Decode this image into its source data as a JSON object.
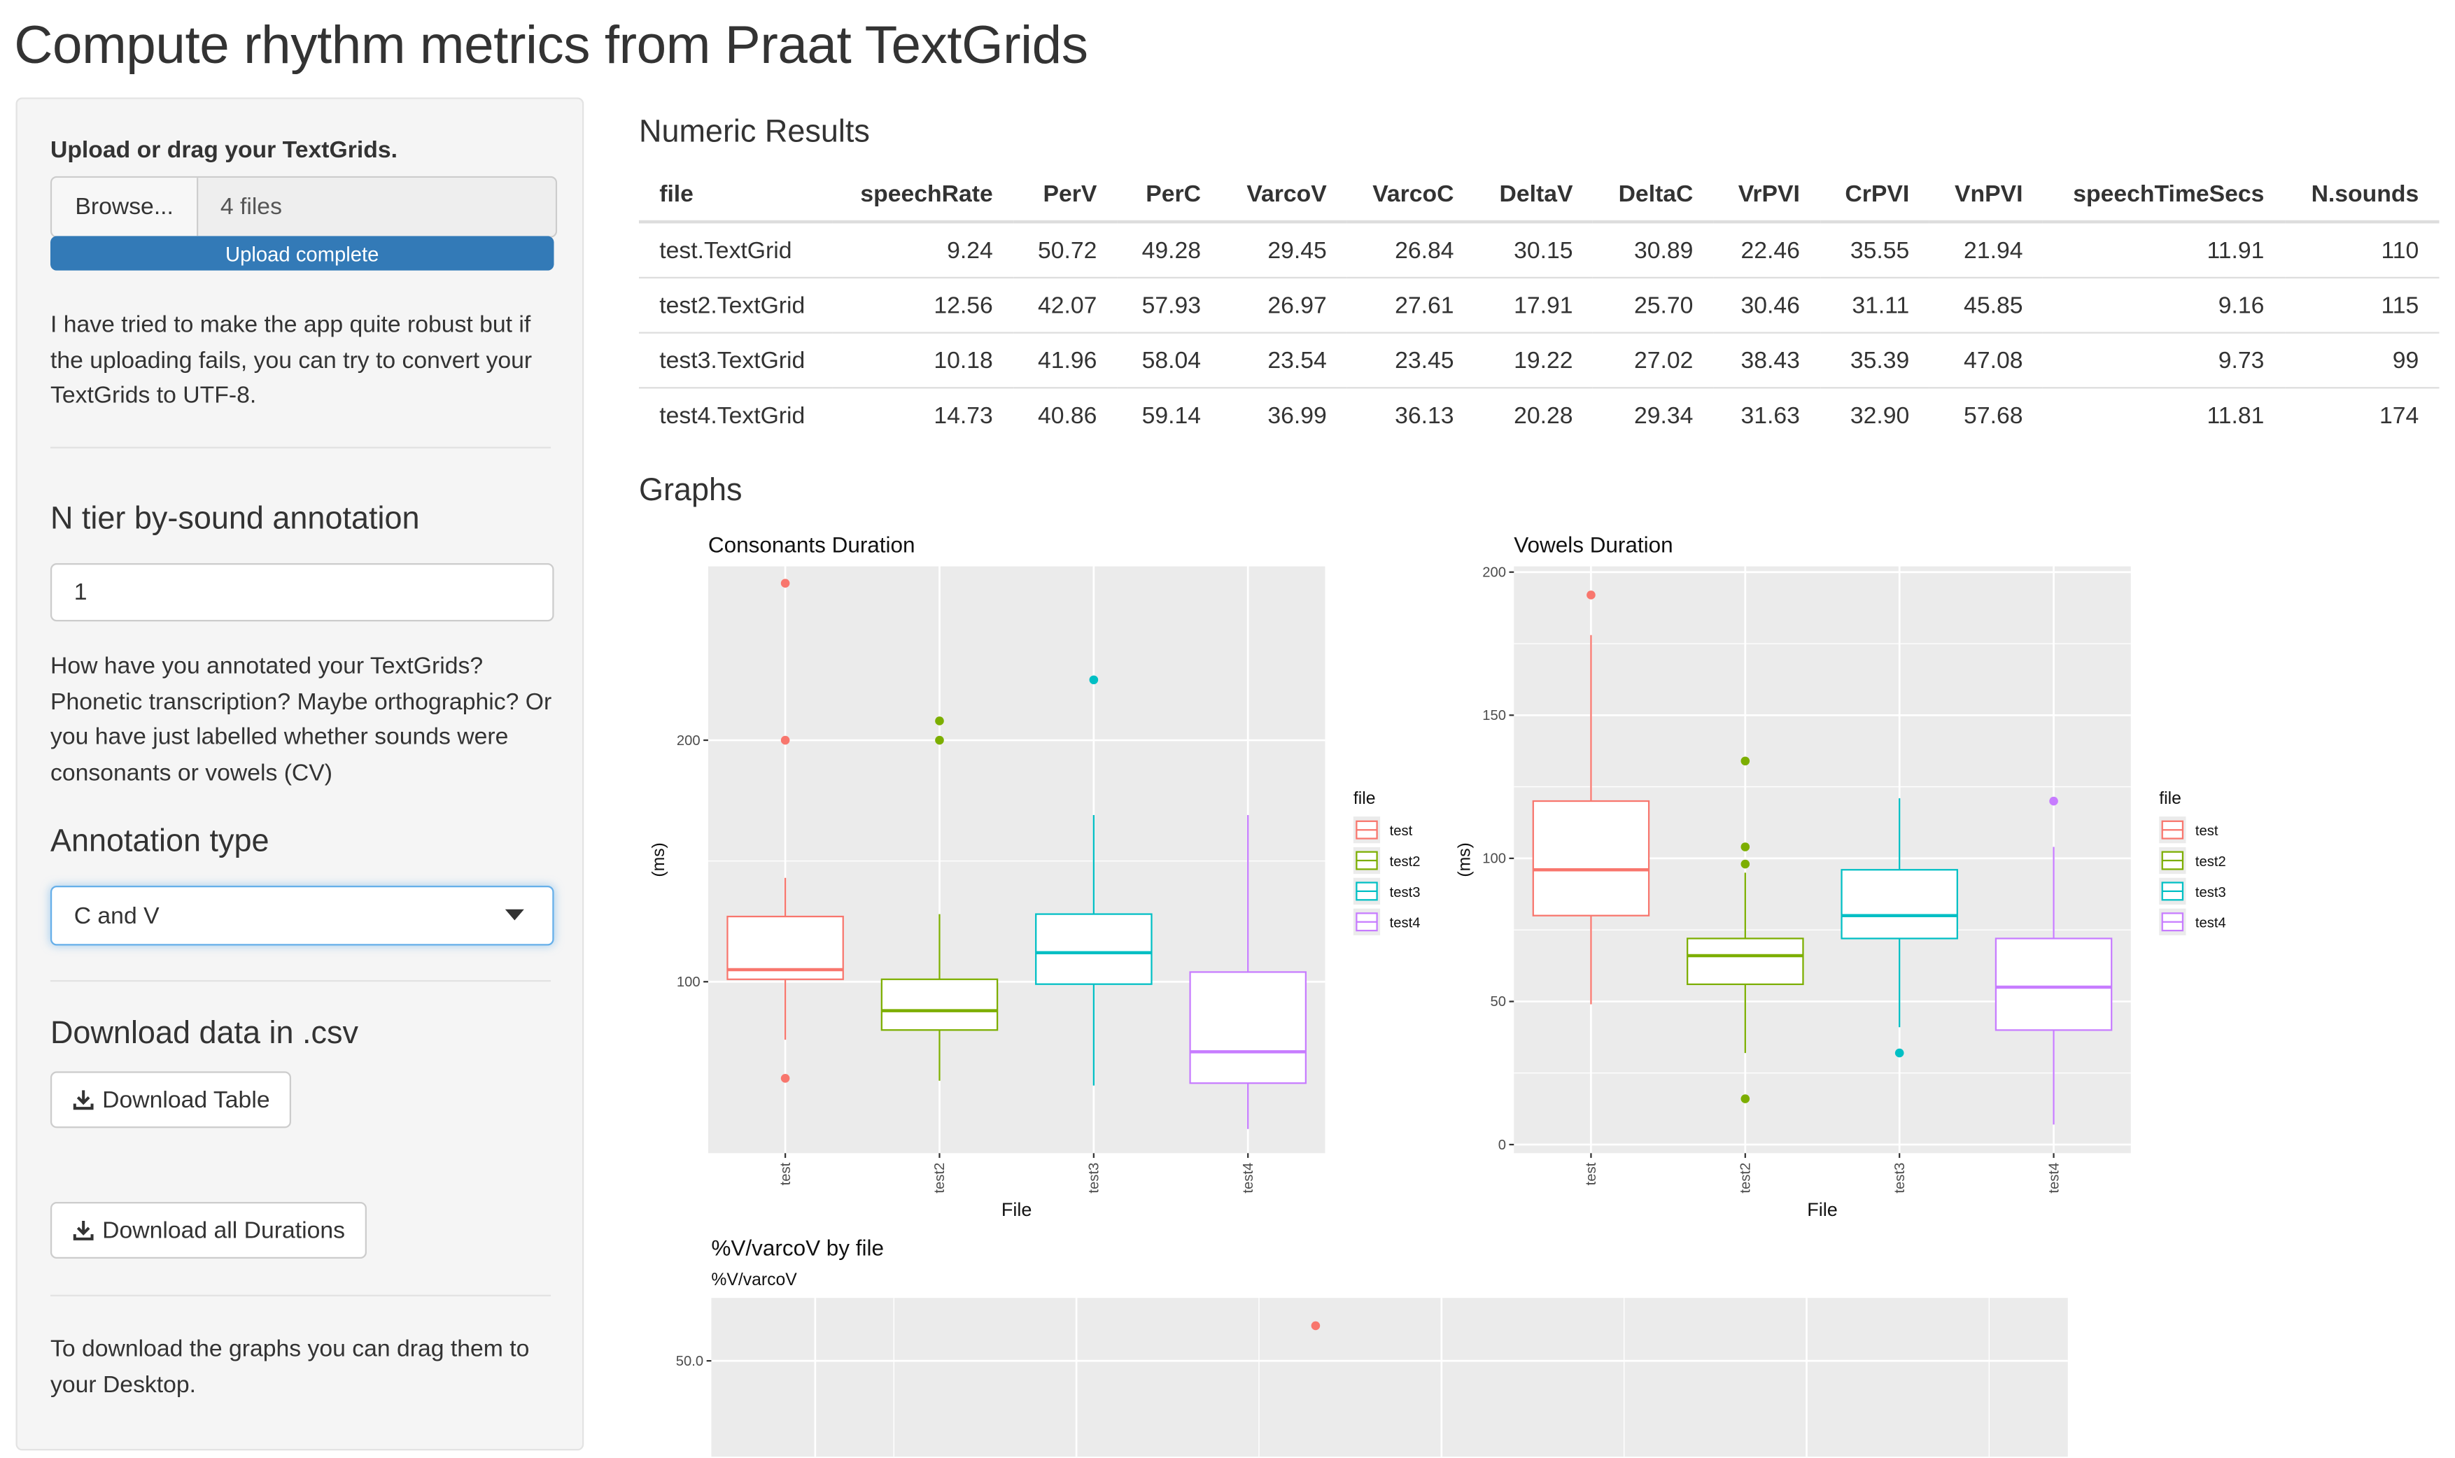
{
  "app": {
    "title": "Compute rhythm metrics from Praat TextGrids"
  },
  "sidebar": {
    "upload_label": "Upload or drag your TextGrids.",
    "browse_label": "Browse...",
    "file_count": "4 files",
    "progress_text": "Upload complete",
    "progress_value": 100,
    "upload_help": "I have tried to make the app quite robust but if the uploading fails, you can try to convert your TextGrids to UTF-8.",
    "ntier_heading": "N tier by-sound annotation",
    "ntier_value": "1",
    "annotation_help": "How have you annotated your TextGrids? Phonetic transcription? Maybe orthographic? Or you have just labelled whether sounds were consonants or vowels (CV)",
    "annotation_heading": "Annotation type",
    "annotation_value": "C and V",
    "download_heading": "Download data in .csv",
    "download_table_label": "Download Table",
    "download_durations_label": "Download all Durations",
    "drag_help": "To download the graphs you can drag them to your Desktop."
  },
  "main": {
    "results_heading": "Numeric Results",
    "graphs_heading": "Graphs",
    "table": {
      "columns": [
        "file",
        "speechRate",
        "PerV",
        "PerC",
        "VarcoV",
        "VarcoC",
        "DeltaV",
        "DeltaC",
        "VrPVI",
        "CrPVI",
        "VnPVI",
        "speechTimeSecs",
        "N.sounds"
      ],
      "rows": [
        [
          "test.TextGrid",
          "9.24",
          "50.72",
          "49.28",
          "29.45",
          "26.84",
          "30.15",
          "30.89",
          "22.46",
          "35.55",
          "21.94",
          "11.91",
          "110"
        ],
        [
          "test2.TextGrid",
          "12.56",
          "42.07",
          "57.93",
          "26.97",
          "27.61",
          "17.91",
          "25.70",
          "30.46",
          "31.11",
          "45.85",
          "9.16",
          "115"
        ],
        [
          "test3.TextGrid",
          "10.18",
          "41.96",
          "58.04",
          "23.54",
          "23.45",
          "19.22",
          "27.02",
          "38.43",
          "35.39",
          "47.08",
          "9.73",
          "99"
        ],
        [
          "test4.TextGrid",
          "14.73",
          "40.86",
          "59.14",
          "36.99",
          "36.13",
          "20.28",
          "29.34",
          "31.63",
          "32.90",
          "57.68",
          "11.81",
          "174"
        ]
      ]
    }
  },
  "colors": {
    "test": "#F8766D",
    "test2": "#7CAE00",
    "test3": "#00BFC4",
    "test4": "#C77CFF",
    "panel": "#EBEBEB",
    "accent": "#337ab7"
  },
  "chart_data": [
    {
      "type": "box",
      "title": "Consonants Duration",
      "xlabel": "File",
      "ylabel": "(ms)",
      "legend_title": "file",
      "legend_position": "right",
      "categories": [
        "test",
        "test2",
        "test3",
        "test4"
      ],
      "y_ticks": [
        100,
        200
      ],
      "ylim": [
        29,
        272
      ],
      "boxes": [
        {
          "name": "test",
          "min": 76,
          "q1": 101,
          "median": 105,
          "q3": 127,
          "max": 143,
          "outliers": [
            60,
            200,
            265
          ]
        },
        {
          "name": "test2",
          "min": 59,
          "q1": 80,
          "median": 88,
          "q3": 101,
          "max": 128,
          "outliers": [
            200,
            208
          ]
        },
        {
          "name": "test3",
          "min": 57,
          "q1": 99,
          "median": 112,
          "q3": 128,
          "max": 169,
          "outliers": [
            225
          ]
        },
        {
          "name": "test4",
          "min": 39,
          "q1": 58,
          "median": 71,
          "q3": 104,
          "max": 169,
          "outliers": []
        }
      ]
    },
    {
      "type": "box",
      "title": "Vowels Duration",
      "xlabel": "File",
      "ylabel": "(ms)",
      "legend_title": "file",
      "legend_position": "right",
      "categories": [
        "test",
        "test2",
        "test3",
        "test4"
      ],
      "y_ticks": [
        0,
        50,
        100,
        150,
        200
      ],
      "ylim": [
        -3,
        202
      ],
      "boxes": [
        {
          "name": "test",
          "min": 49,
          "q1": 80,
          "median": 96,
          "q3": 120,
          "max": 178,
          "outliers": [
            192
          ]
        },
        {
          "name": "test2",
          "min": 32,
          "q1": 56,
          "median": 66,
          "q3": 72,
          "max": 95,
          "outliers": [
            16,
            98,
            104,
            134
          ]
        },
        {
          "name": "test3",
          "min": 41,
          "q1": 72,
          "median": 80,
          "q3": 96,
          "max": 121,
          "outliers": [
            32
          ]
        },
        {
          "name": "test4",
          "min": 7,
          "q1": 40,
          "median": 55,
          "q3": 72,
          "max": 104,
          "outliers": [
            120
          ]
        }
      ]
    },
    {
      "type": "scatter",
      "title": "%V/varcoV by file",
      "ylabel": "%V/varcoV",
      "y_ticks": [
        50.0
      ],
      "points": [
        {
          "series": "test",
          "y": 50.72
        }
      ]
    }
  ]
}
